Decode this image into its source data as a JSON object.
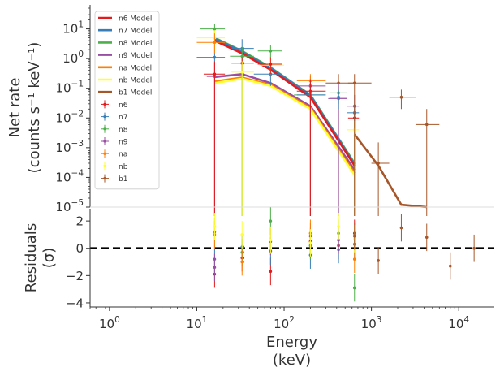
{
  "chart_data": [
    {
      "type": "scatter",
      "panel": "counts",
      "ylabel_line1": "Net rate",
      "ylabel_line2": "(counts s⁻¹ keV⁻¹)",
      "y_scale": "log",
      "x_scale": "log",
      "ylim": [
        1e-05,
        50
      ],
      "y_tick_values": [
        1e-05,
        0.0001,
        0.001,
        0.01,
        0.1,
        1,
        10
      ],
      "y_tick_labels": [
        {
          "base": "10",
          "exp": "−5"
        },
        {
          "base": "10",
          "exp": "−4"
        },
        {
          "base": "10",
          "exp": "−3"
        },
        {
          "base": "10",
          "exp": "−2"
        },
        {
          "base": "10",
          "exp": "−1"
        },
        {
          "base": "10",
          "exp": "0"
        },
        {
          "base": "10",
          "exp": "1"
        }
      ],
      "legend_position": "top-left",
      "legend": [
        {
          "label": "n6 Model",
          "kind": "line",
          "color": "#e41a1c"
        },
        {
          "label": "n7 Model",
          "kind": "line",
          "color": "#377eb8"
        },
        {
          "label": "n8 Model",
          "kind": "line",
          "color": "#4daf4a"
        },
        {
          "label": "n9 Model",
          "kind": "line",
          "color": "#984ea3"
        },
        {
          "label": "na Model",
          "kind": "line",
          "color": "#ff7f00"
        },
        {
          "label": "nb Model",
          "kind": "line",
          "color": "#ffff33"
        },
        {
          "label": "b1 Model",
          "kind": "line",
          "color": "#a65628"
        },
        {
          "label": "n6",
          "kind": "point",
          "color": "#e41a1c"
        },
        {
          "label": "n7",
          "kind": "point",
          "color": "#377eb8"
        },
        {
          "label": "n8",
          "kind": "point",
          "color": "#4daf4a"
        },
        {
          "label": "n9",
          "kind": "point",
          "color": "#984ea3"
        },
        {
          "label": "na",
          "kind": "point",
          "color": "#ff7f00"
        },
        {
          "label": "nb",
          "kind": "point",
          "color": "#ffff33"
        },
        {
          "label": "b1",
          "kind": "point",
          "color": "#a65628"
        }
      ],
      "models": [
        {
          "name": "n8 Model",
          "color": "#4daf4a",
          "x": [
            16,
            33,
            70,
            200,
            640
          ],
          "y": [
            5.0,
            1.8,
            0.5,
            0.06,
            0.0003
          ]
        },
        {
          "name": "n7 Model",
          "color": "#377eb8",
          "x": [
            16,
            33,
            70,
            200,
            640
          ],
          "y": [
            4.8,
            1.7,
            0.48,
            0.058,
            0.00028
          ]
        },
        {
          "name": "n9 Model",
          "color": "#984ea3",
          "x": [
            16,
            33,
            70,
            200,
            640
          ],
          "y": [
            0.24,
            0.3,
            0.15,
            0.025,
            0.00018
          ]
        },
        {
          "name": "na Model",
          "color": "#ff7f00",
          "x": [
            16,
            33,
            70,
            200,
            640
          ],
          "y": [
            0.17,
            0.23,
            0.13,
            0.022,
            0.00014
          ]
        },
        {
          "name": "nb Model",
          "color": "#ffff33",
          "x": [
            16,
            33,
            70,
            200,
            640
          ],
          "y": [
            0.15,
            0.21,
            0.12,
            0.02,
            0.00012
          ]
        },
        {
          "name": "n6 Model",
          "color": "#e41a1c",
          "x": [
            16,
            33,
            70,
            200,
            640
          ],
          "y": [
            4.0,
            1.5,
            0.42,
            0.05,
            0.00025
          ]
        },
        {
          "name": "b1 Model",
          "color": "#a65628",
          "x": [
            640,
            1200,
            2200,
            4300
          ],
          "y": [
            0.0028,
            0.00025,
            1.2e-05,
            1e-05
          ]
        }
      ],
      "points": [
        {
          "series": "n8",
          "color": "#4daf4a",
          "x": 16,
          "xerr": [
            11,
            21
          ],
          "y": 10.0,
          "yerr": [
            5.0,
            15.0
          ]
        },
        {
          "series": "n7",
          "color": "#377eb8",
          "x": 16,
          "xerr": [
            10,
            21
          ],
          "y": 1.1,
          "yerr": [
            1e-06,
            3.0
          ]
        },
        {
          "series": "nb",
          "color": "#ffff33",
          "x": 16,
          "xerr": [
            10,
            21
          ],
          "y": 5.0,
          "yerr": [
            2.0,
            9.0
          ]
        },
        {
          "series": "na",
          "color": "#ff7f00",
          "x": 16,
          "xerr": [
            10,
            21
          ],
          "y": 3.5,
          "yerr": [
            1.5,
            7.0
          ]
        },
        {
          "series": "n9",
          "color": "#984ea3",
          "x": 16,
          "xerr": [
            13,
            20
          ],
          "y": 0.25,
          "yerr": [
            1e-06,
            0.7
          ]
        },
        {
          "series": "n6",
          "color": "#e41a1c",
          "x": 16,
          "xerr": [
            12,
            21
          ],
          "y": 0.3,
          "yerr": [
            1e-06,
            0.8
          ]
        },
        {
          "series": "n7",
          "color": "#377eb8",
          "x": 33,
          "xerr": [
            25,
            45
          ],
          "y": 2.2,
          "yerr": [
            1e-06,
            4.5
          ]
        },
        {
          "series": "n8",
          "color": "#4daf4a",
          "x": 33,
          "xerr": [
            24,
            45
          ],
          "y": 1.2,
          "yerr": [
            1e-06,
            2.5
          ]
        },
        {
          "series": "n6",
          "color": "#e41a1c",
          "x": 33,
          "xerr": [
            25,
            45
          ],
          "y": 0.7,
          "yerr": [
            0.35,
            1.1
          ]
        },
        {
          "series": "nb",
          "color": "#ffff33",
          "x": 33,
          "xerr": [
            25,
            45
          ],
          "y": 0.35,
          "yerr": [
            1e-06,
            0.8
          ]
        },
        {
          "series": "n8",
          "color": "#4daf4a",
          "x": 70,
          "xerr": [
            50,
            95
          ],
          "y": 1.8,
          "yerr": [
            1.0,
            2.8
          ]
        },
        {
          "series": "n7",
          "color": "#377eb8",
          "x": 70,
          "xerr": [
            45,
            95
          ],
          "y": 0.3,
          "yerr": [
            0.12,
            0.6
          ]
        },
        {
          "series": "nb",
          "color": "#ffff33",
          "x": 70,
          "xerr": [
            52,
            100
          ],
          "y": 0.6,
          "yerr": [
            0.3,
            1.0
          ]
        },
        {
          "series": "n6",
          "color": "#e41a1c",
          "x": 70,
          "xerr": [
            50,
            95
          ],
          "y": 0.65,
          "yerr": [
            0.3,
            1.1
          ]
        },
        {
          "series": "n9",
          "color": "#984ea3",
          "x": 200,
          "xerr": [
            135,
            300
          ],
          "y": 0.12,
          "yerr": [
            1e-06,
            0.25
          ]
        },
        {
          "series": "na",
          "color": "#ff7f00",
          "x": 200,
          "xerr": [
            140,
            300
          ],
          "y": 0.18,
          "yerr": [
            1e-06,
            0.3
          ]
        },
        {
          "series": "n8",
          "color": "#4daf4a",
          "x": 200,
          "xerr": [
            130,
            300
          ],
          "y": 0.06,
          "yerr": [
            1e-06,
            0.2
          ]
        },
        {
          "series": "n7",
          "color": "#377eb8",
          "x": 200,
          "xerr": [
            140,
            300
          ],
          "y": 0.06,
          "yerr": [
            1e-06,
            0.15
          ]
        },
        {
          "series": "n6",
          "color": "#e41a1c",
          "x": 200,
          "xerr": [
            140,
            300
          ],
          "y": 0.08,
          "yerr": [
            1e-06,
            0.2
          ]
        },
        {
          "series": "b1",
          "color": "#a65628",
          "x": 420,
          "xerr": [
            300,
            640
          ],
          "y": 0.15,
          "yerr": [
            1e-06,
            0.3
          ]
        },
        {
          "series": "n8",
          "color": "#4daf4a",
          "x": 420,
          "xerr": [
            330,
            520
          ],
          "y": 0.07,
          "yerr": [
            0.03,
            0.12
          ]
        },
        {
          "series": "n9",
          "color": "#984ea3",
          "x": 420,
          "xerr": [
            320,
            520
          ],
          "y": 0.045,
          "yerr": [
            1e-06,
            0.15
          ]
        },
        {
          "series": "n7",
          "color": "#377eb8",
          "x": 420,
          "xerr": [
            330,
            520
          ],
          "y": 0.05,
          "yerr": [
            0.02,
            0.09
          ]
        },
        {
          "series": "n6",
          "color": "#e41a1c",
          "x": 640,
          "xerr": [
            540,
            720
          ],
          "y": 0.01,
          "yerr": [
            0.005,
            0.02
          ]
        },
        {
          "series": "n9",
          "color": "#984ea3",
          "x": 640,
          "xerr": [
            520,
            720
          ],
          "y": 0.025,
          "yerr": [
            1e-06,
            0.06
          ]
        },
        {
          "series": "n7",
          "color": "#377eb8",
          "x": 640,
          "xerr": [
            520,
            720
          ],
          "y": 0.015,
          "yerr": [
            1e-06,
            0.03
          ]
        },
        {
          "series": "nb",
          "color": "#ffff33",
          "x": 640,
          "xerr": [
            520,
            720
          ],
          "y": 0.004,
          "yerr": [
            1e-06,
            0.008
          ]
        },
        {
          "series": "b1",
          "color": "#a65628",
          "x": 640,
          "xerr": [
            540,
            1000
          ],
          "y": 0.15,
          "yerr": [
            1e-06,
            0.3
          ]
        },
        {
          "series": "b1",
          "color": "#a65628",
          "x": 1200,
          "xerr": [
            1000,
            1600
          ],
          "y": 0.0003,
          "yerr": [
            1e-06,
            0.0015
          ]
        },
        {
          "series": "b1",
          "color": "#a65628",
          "x": 2200,
          "xerr": [
            1600,
            3200
          ],
          "y": 0.05,
          "yerr": [
            0.02,
            0.09
          ]
        },
        {
          "series": "b1",
          "color": "#a65628",
          "x": 4300,
          "xerr": [
            3200,
            6000
          ],
          "y": 0.006,
          "yerr": [
            1e-06,
            0.02
          ]
        }
      ]
    },
    {
      "type": "scatter",
      "panel": "residuals",
      "xlabel_line1": "Energy",
      "xlabel_line2": "(keV)",
      "ylabel_line1": "Residuals",
      "ylabel_line2": "(σ)",
      "x_scale": "log",
      "xlim": [
        0.6,
        25000
      ],
      "x_tick_values": [
        1,
        10,
        100,
        1000,
        10000
      ],
      "x_tick_labels": [
        {
          "base": "10",
          "exp": "0"
        },
        {
          "base": "10",
          "exp": "1"
        },
        {
          "base": "10",
          "exp": "2"
        },
        {
          "base": "10",
          "exp": "3"
        },
        {
          "base": "10",
          "exp": "4"
        }
      ],
      "ylim": [
        -4.3,
        2.9
      ],
      "y_tick_values": [
        -4,
        -2,
        0,
        2
      ],
      "y_tick_labels": [
        "−4",
        "−2",
        "0",
        "2"
      ],
      "reference_line": 0,
      "points": [
        {
          "series": "n6",
          "color": "#e41a1c",
          "x": 16,
          "y": -1.9,
          "yerr": 1
        },
        {
          "series": "n7",
          "color": "#377eb8",
          "x": 16,
          "y": -0.8,
          "yerr": 1
        },
        {
          "series": "n8",
          "color": "#4daf4a",
          "x": 16,
          "y": 1.2,
          "yerr": 1
        },
        {
          "series": "n9",
          "color": "#984ea3",
          "x": 16,
          "y": -1.4,
          "yerr": 1
        },
        {
          "series": "na",
          "color": "#ff7f00",
          "x": 16,
          "y": 1.0,
          "yerr": 1
        },
        {
          "series": "nb",
          "color": "#ffff33",
          "x": 16,
          "y": 1.6,
          "yerr": 1
        },
        {
          "series": "n6",
          "color": "#e41a1c",
          "x": 33,
          "y": -0.7,
          "yerr": 1
        },
        {
          "series": "n7",
          "color": "#377eb8",
          "x": 33,
          "y": 0.1,
          "yerr": 1
        },
        {
          "series": "n8",
          "color": "#4daf4a",
          "x": 33,
          "y": -0.3,
          "yerr": 1
        },
        {
          "series": "na",
          "color": "#ff7f00",
          "x": 33,
          "y": -1.0,
          "yerr": 1
        },
        {
          "series": "nb",
          "color": "#ffff33",
          "x": 33,
          "y": 1.0,
          "yerr": 1
        },
        {
          "series": "n6",
          "color": "#e41a1c",
          "x": 70,
          "y": -1.7,
          "yerr": 1
        },
        {
          "series": "n7",
          "color": "#377eb8",
          "x": 70,
          "y": -0.2,
          "yerr": 1
        },
        {
          "series": "n8",
          "color": "#4daf4a",
          "x": 70,
          "y": 2.0,
          "yerr": 1
        },
        {
          "series": "n9",
          "color": "#984ea3",
          "x": 70,
          "y": 0.5,
          "yerr": 1
        },
        {
          "series": "nb",
          "color": "#ffff33",
          "x": 70,
          "y": 0.6,
          "yerr": 1
        },
        {
          "series": "n6",
          "color": "#e41a1c",
          "x": 200,
          "y": 0.5,
          "yerr": 1
        },
        {
          "series": "n7",
          "color": "#377eb8",
          "x": 200,
          "y": -0.5,
          "yerr": 1
        },
        {
          "series": "n8",
          "color": "#4daf4a",
          "x": 200,
          "y": 0.2,
          "yerr": 1
        },
        {
          "series": "n9",
          "color": "#984ea3",
          "x": 200,
          "y": 0.9,
          "yerr": 1
        },
        {
          "series": "na",
          "color": "#ff7f00",
          "x": 200,
          "y": 1.1,
          "yerr": 1
        },
        {
          "series": "nb",
          "color": "#ffff33",
          "x": 200,
          "y": 0.4,
          "yerr": 1
        },
        {
          "series": "n6",
          "color": "#e41a1c",
          "x": 420,
          "y": 0.2,
          "yerr": 1
        },
        {
          "series": "n7",
          "color": "#377eb8",
          "x": 420,
          "y": -0.1,
          "yerr": 1
        },
        {
          "series": "n8",
          "color": "#4daf4a",
          "x": 420,
          "y": 1.1,
          "yerr": 1
        },
        {
          "series": "n9",
          "color": "#984ea3",
          "x": 420,
          "y": 0.6,
          "yerr": 1
        },
        {
          "series": "nb",
          "color": "#ffff33",
          "x": 420,
          "y": 1.6,
          "yerr": 1
        },
        {
          "series": "n6",
          "color": "#e41a1c",
          "x": 640,
          "y": 1.1,
          "yerr": 1
        },
        {
          "series": "n7",
          "color": "#377eb8",
          "x": 640,
          "y": 0.3,
          "yerr": 1
        },
        {
          "series": "n8",
          "color": "#4daf4a",
          "x": 640,
          "y": -2.9,
          "yerr": 1
        },
        {
          "series": "na",
          "color": "#ff7f00",
          "x": 640,
          "y": -0.8,
          "yerr": 1
        },
        {
          "series": "nb",
          "color": "#ffff33",
          "x": 640,
          "y": 0.7,
          "yerr": 1
        },
        {
          "series": "b1",
          "color": "#a65628",
          "x": 640,
          "y": 0.9,
          "yerr": 1
        },
        {
          "series": "b1",
          "color": "#a65628",
          "x": 1200,
          "y": -0.9,
          "yerr": 1
        },
        {
          "series": "b1",
          "color": "#a65628",
          "x": 2200,
          "y": 1.5,
          "yerr": 1
        },
        {
          "series": "b1",
          "color": "#a65628",
          "x": 4300,
          "y": 0.8,
          "yerr": 1
        },
        {
          "series": "b1",
          "color": "#a65628",
          "x": 8000,
          "y": -1.3,
          "yerr": 1
        },
        {
          "series": "b1",
          "color": "#a65628",
          "x": 15000,
          "y": 0.0,
          "yerr": 1
        }
      ]
    }
  ]
}
